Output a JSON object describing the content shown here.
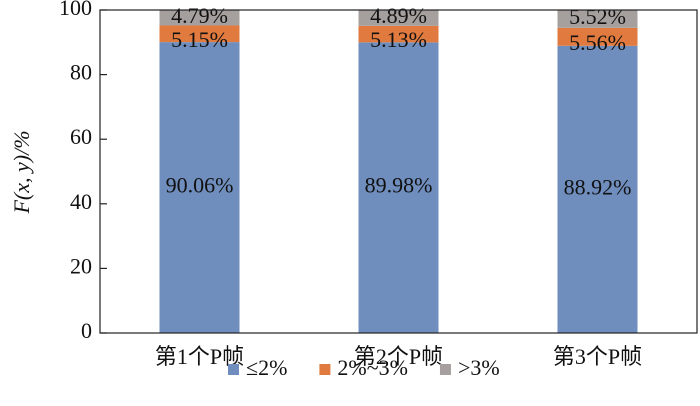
{
  "chart_data": {
    "type": "stacked-bar",
    "y_label": "F(x, y)/%",
    "categories": [
      "第1个P帧",
      "第2个P帧",
      "第3个P帧"
    ],
    "series": [
      {
        "name": "≤2%",
        "color": "#6f8ebe",
        "values": [
          90.06,
          89.98,
          88.92
        ],
        "value_labels": [
          "90.06%",
          "89.98%",
          "88.92%"
        ]
      },
      {
        "name": "2%~3%",
        "color": "#e17a3e",
        "values": [
          5.15,
          5.13,
          5.56
        ],
        "value_labels": [
          "5.15%",
          "5.13%",
          "5.56%"
        ]
      },
      {
        "name": ">3%",
        "color": "#a5a09d",
        "values": [
          4.79,
          4.89,
          5.52
        ],
        "value_labels": [
          "4.79%",
          "4.89%",
          "5.52%"
        ]
      }
    ],
    "ylim": [
      0,
      100
    ],
    "yticks": [
      0,
      20,
      40,
      60,
      80,
      100
    ],
    "legend": "bottom"
  }
}
